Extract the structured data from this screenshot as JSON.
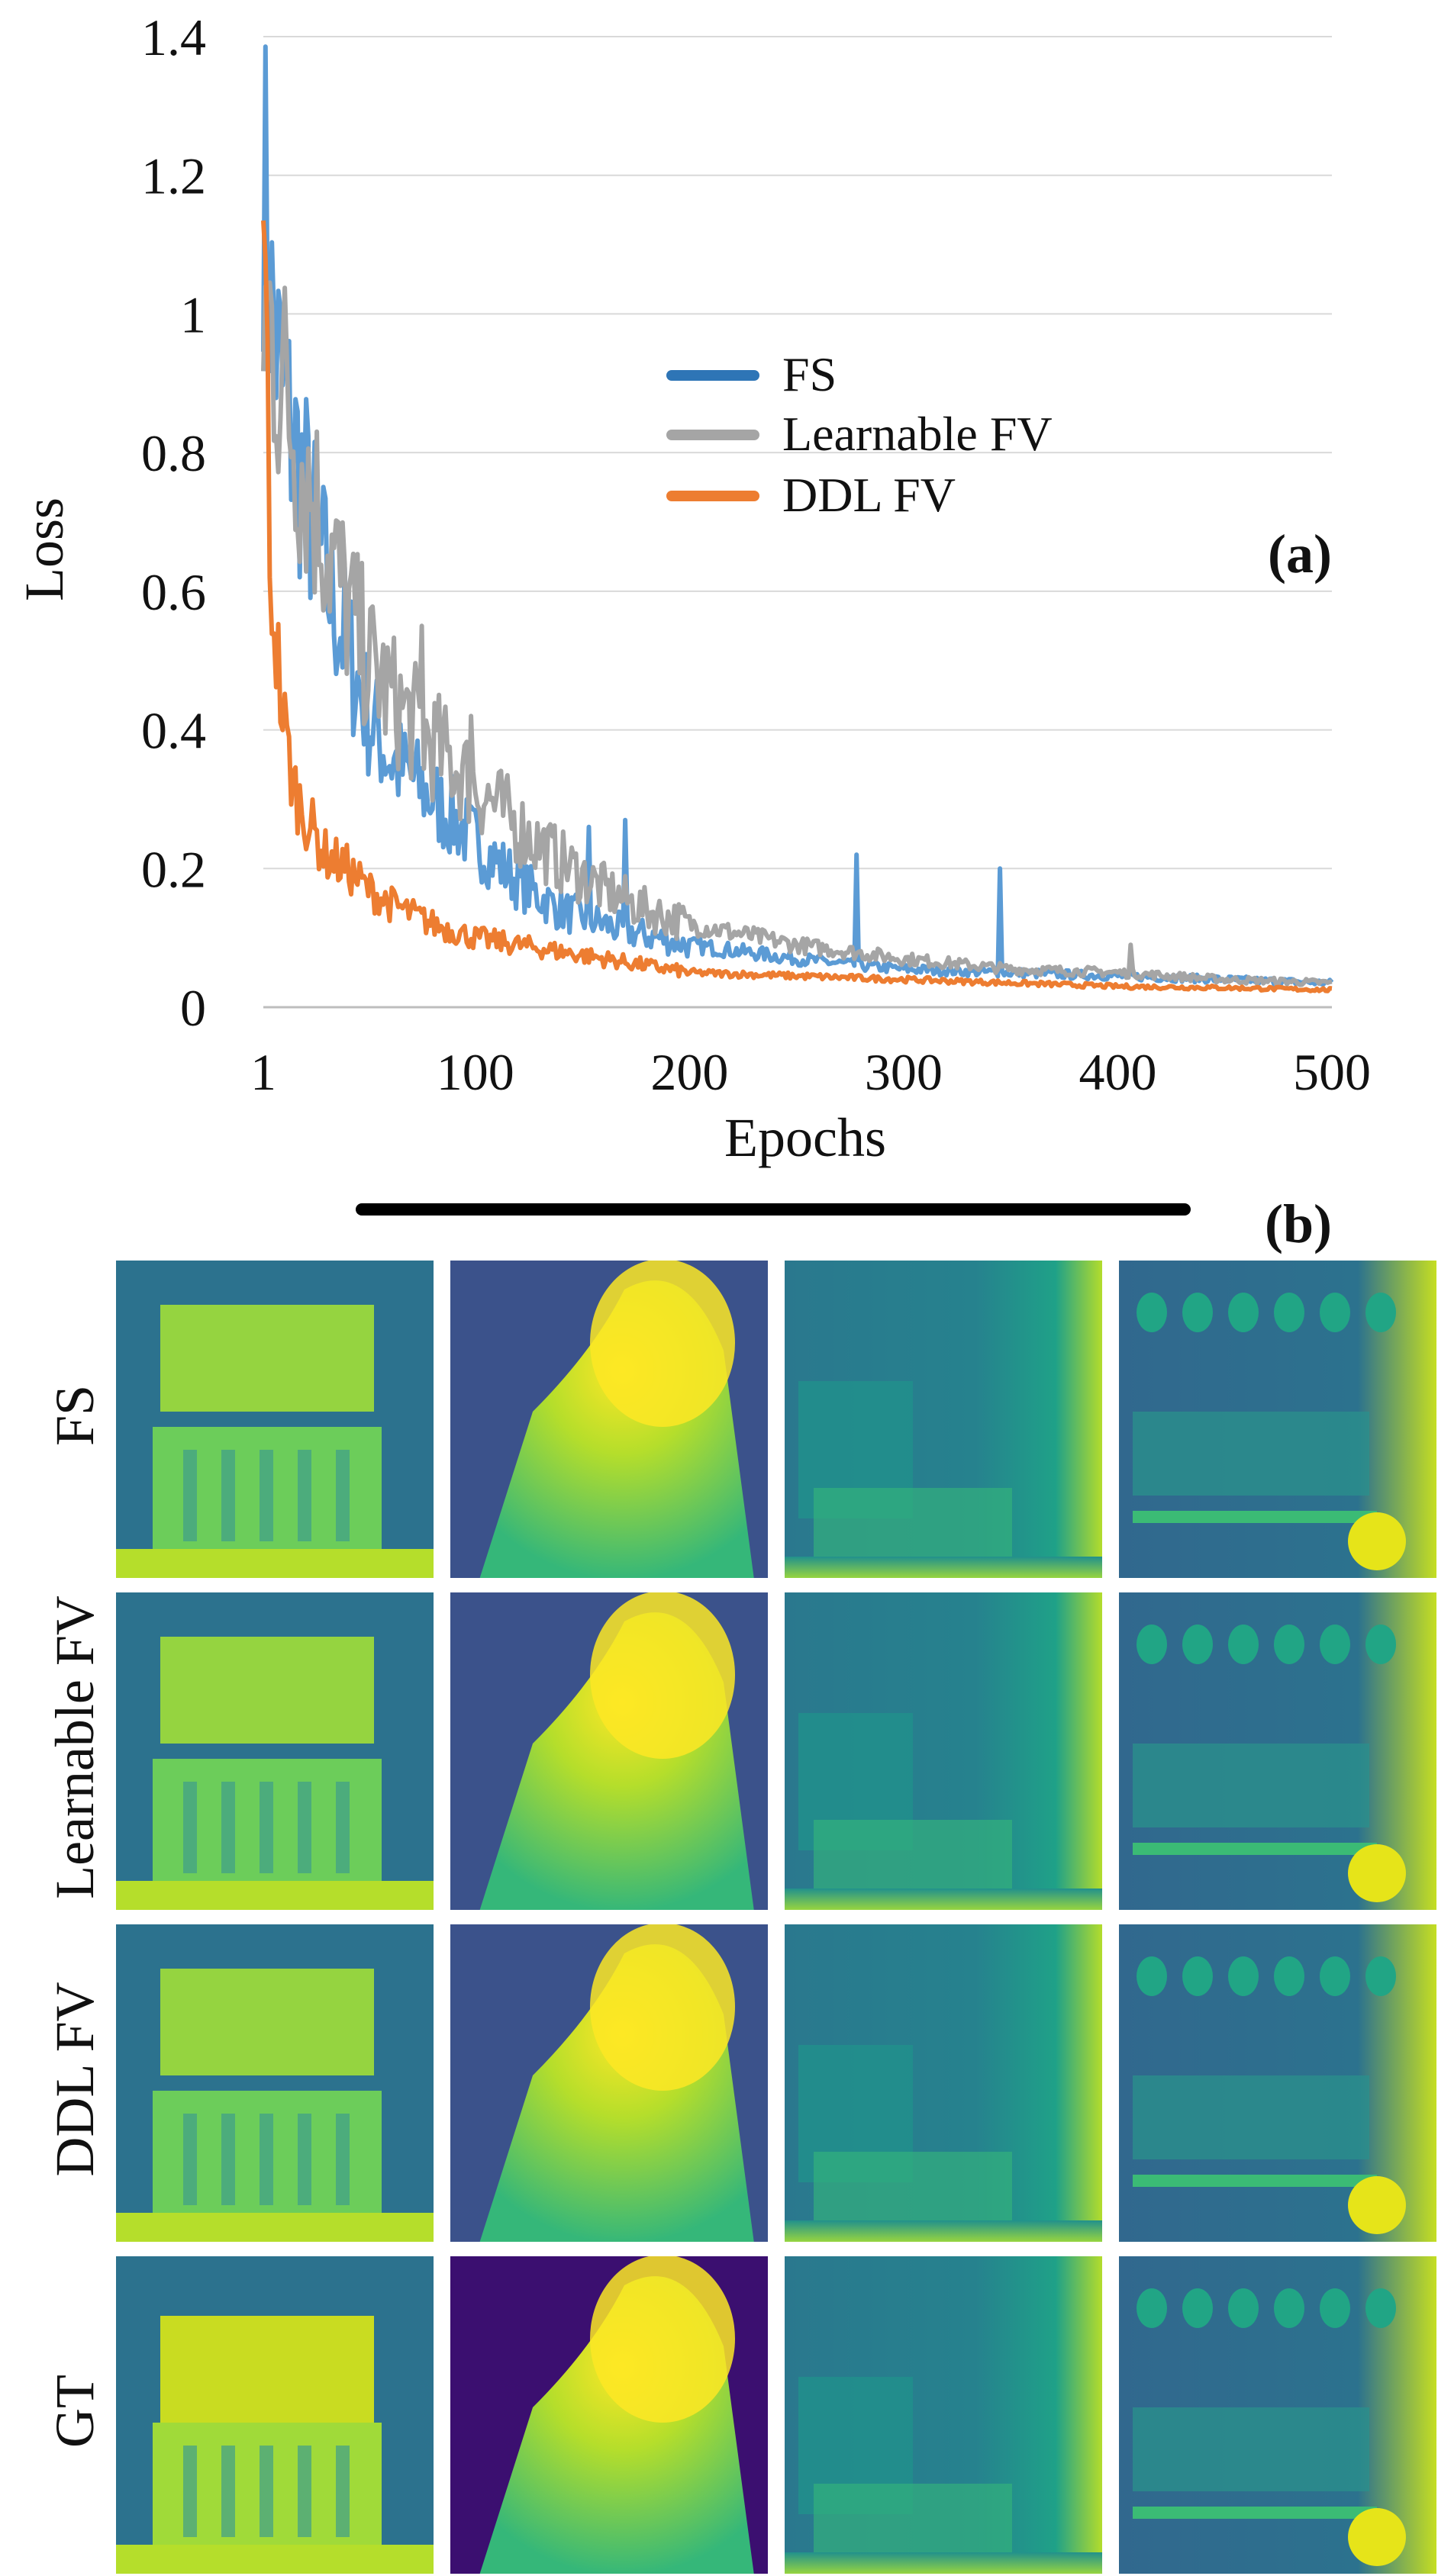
{
  "chart_data": {
    "type": "line",
    "title": "",
    "panel_label": "(a)",
    "xlabel": "Epochs",
    "ylabel": "Loss",
    "xlim": [
      1,
      500
    ],
    "ylim": [
      0,
      1.4
    ],
    "x_ticks": [
      "1",
      "100",
      "200",
      "300",
      "400",
      "500"
    ],
    "y_ticks": [
      "0",
      "0.2",
      "0.4",
      "0.6",
      "0.8",
      "1",
      "1.2",
      "1.4"
    ],
    "grid": true,
    "legend_position": "upper-middle",
    "series": [
      {
        "name": "FS",
        "color": "#5b9bd5",
        "x": [
          1,
          5,
          10,
          20,
          30,
          40,
          50,
          60,
          80,
          100,
          120,
          140,
          160,
          170,
          200,
          250,
          280,
          300,
          345,
          400,
          450,
          500
        ],
        "values": [
          1.22,
          1.0,
          0.88,
          0.75,
          0.62,
          0.52,
          0.42,
          0.36,
          0.3,
          0.24,
          0.18,
          0.14,
          0.12,
          0.11,
          0.09,
          0.07,
          0.06,
          0.055,
          0.05,
          0.045,
          0.04,
          0.035
        ],
        "spikes": [
          {
            "x": 153,
            "y": 0.26
          },
          {
            "x": 170,
            "y": 0.27
          },
          {
            "x": 278,
            "y": 0.22
          },
          {
            "x": 345,
            "y": 0.2
          }
        ]
      },
      {
        "name": "Learnable FV",
        "color": "#a5a5a5",
        "x": [
          1,
          5,
          10,
          20,
          30,
          40,
          50,
          60,
          80,
          100,
          120,
          140,
          160,
          180,
          200,
          250,
          300,
          350,
          400,
          450,
          500
        ],
        "values": [
          1.0,
          0.98,
          0.9,
          0.78,
          0.68,
          0.58,
          0.5,
          0.45,
          0.38,
          0.32,
          0.26,
          0.21,
          0.17,
          0.14,
          0.12,
          0.09,
          0.07,
          0.055,
          0.05,
          0.04,
          0.035
        ],
        "spikes": [
          {
            "x": 75,
            "y": 0.55
          },
          {
            "x": 98,
            "y": 0.42
          },
          {
            "x": 406,
            "y": 0.09
          }
        ]
      },
      {
        "name": "DDL FV",
        "color": "#ed7d31",
        "x": [
          1,
          3,
          5,
          10,
          15,
          20,
          30,
          40,
          50,
          60,
          80,
          100,
          120,
          140,
          160,
          180,
          200,
          250,
          300,
          350,
          400,
          450,
          500
        ],
        "values": [
          1.1,
          0.85,
          0.6,
          0.42,
          0.32,
          0.28,
          0.22,
          0.2,
          0.17,
          0.15,
          0.12,
          0.1,
          0.09,
          0.08,
          0.07,
          0.06,
          0.05,
          0.045,
          0.04,
          0.035,
          0.03,
          0.028,
          0.025
        ],
        "spikes": [
          {
            "x": 2,
            "y": 1.08
          },
          {
            "x": 4,
            "y": 0.62
          }
        ]
      }
    ]
  },
  "panel_b": {
    "label": "(b)",
    "rows": [
      "FS",
      "Learnable FV",
      "DDL FV",
      "GT"
    ],
    "columns": 4
  },
  "colors": {
    "viridis_dark": "#440154",
    "viridis_blue": "#31688e",
    "viridis_teal": "#21918c",
    "viridis_green": "#5ec962",
    "viridis_yellow": "#fde725"
  }
}
